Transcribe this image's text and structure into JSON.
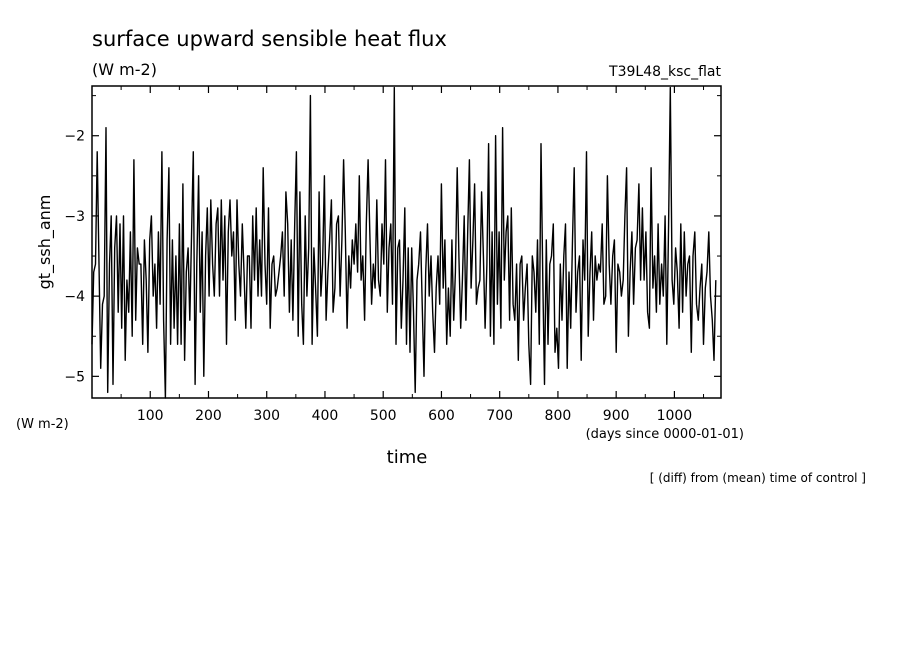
{
  "chart_data": {
    "type": "line",
    "title": "surface upward sensible heat flux",
    "units": "(W m-2)",
    "experiment": "T39L48_ksc_flat",
    "ylabel": "gt_ssh_anm",
    "yunits": "(W m-2)",
    "xlabel": "time",
    "xunits": "(days since 0000-01-01)",
    "note": "[ (diff) from (mean) time of control ]",
    "xlim": [
      0,
      1080
    ],
    "ylim": [
      -5.27,
      -1.38
    ],
    "xticks": [
      100,
      200,
      300,
      400,
      500,
      600,
      700,
      800,
      900,
      1000
    ],
    "yticks": [
      -2,
      -3,
      -4,
      -5
    ],
    "series": [
      {
        "x_start": 0,
        "x_step": 3,
        "values": [
          -4.6,
          -3.7,
          -3.6,
          -2.2,
          -3.6,
          -4.9,
          -4.1,
          -4.0,
          -1.9,
          -5.2,
          -3.6,
          -3.0,
          -5.1,
          -3.4,
          -3.0,
          -4.2,
          -3.1,
          -4.4,
          -3.0,
          -4.8,
          -3.8,
          -4.2,
          -3.2,
          -4.5,
          -2.3,
          -4.3,
          -3.4,
          -3.6,
          -3.6,
          -4.6,
          -3.3,
          -3.8,
          -4.7,
          -3.3,
          -3.0,
          -4.0,
          -3.6,
          -4.4,
          -3.2,
          -4.1,
          -2.2,
          -4.3,
          -5.3,
          -3.3,
          -2.4,
          -4.6,
          -3.3,
          -4.4,
          -3.5,
          -4.6,
          -3.1,
          -4.6,
          -2.6,
          -4.8,
          -3.7,
          -3.4,
          -4.3,
          -3.2,
          -2.2,
          -5.1,
          -3.6,
          -2.5,
          -4.2,
          -3.2,
          -5.0,
          -3.5,
          -2.9,
          -4.0,
          -2.8,
          -3.6,
          -4.0,
          -3.1,
          -2.9,
          -4.0,
          -2.8,
          -3.8,
          -3.0,
          -4.6,
          -3.2,
          -2.8,
          -3.5,
          -3.2,
          -4.3,
          -2.8,
          -3.6,
          -4.0,
          -3.1,
          -3.7,
          -4.4,
          -3.5,
          -3.5,
          -4.4,
          -3.0,
          -3.8,
          -2.9,
          -4.0,
          -3.3,
          -4.0,
          -2.4,
          -3.6,
          -4.1,
          -2.9,
          -4.4,
          -3.6,
          -3.5,
          -4.0,
          -3.9,
          -3.7,
          -3.5,
          -3.2,
          -4.0,
          -2.7,
          -3.1,
          -4.2,
          -3.3,
          -4.3,
          -3.1,
          -2.2,
          -4.5,
          -2.7,
          -4.1,
          -4.6,
          -3.0,
          -4.0,
          -3.4,
          -1.5,
          -4.6,
          -3.4,
          -3.9,
          -4.5,
          -2.7,
          -4.0,
          -3.6,
          -2.5,
          -4.3,
          -3.7,
          -3.3,
          -2.8,
          -4.2,
          -3.9,
          -3.1,
          -3.0,
          -4.0,
          -3.3,
          -2.3,
          -3.2,
          -4.4,
          -3.5,
          -3.9,
          -3.3,
          -3.6,
          -3.1,
          -3.7,
          -2.5,
          -3.8,
          -3.5,
          -4.3,
          -3.1,
          -2.3,
          -3.2,
          -4.1,
          -3.6,
          -3.9,
          -2.8,
          -3.8,
          -4.0,
          -3.1,
          -3.6,
          -2.3,
          -4.2,
          -3.4,
          -3.1,
          -4.1,
          -1.4,
          -4.6,
          -3.4,
          -3.3,
          -4.4,
          -3.8,
          -2.9,
          -4.6,
          -3.4,
          -4.7,
          -3.4,
          -4.2,
          -5.2,
          -3.8,
          -3.6,
          -3.2,
          -4.1,
          -5.0,
          -3.7,
          -3.1,
          -4.0,
          -3.5,
          -4.2,
          -4.7,
          -3.9,
          -3.5,
          -4.1,
          -2.6,
          -3.9,
          -3.3,
          -4.6,
          -3.9,
          -4.5,
          -3.3,
          -4.3,
          -3.7,
          -2.4,
          -3.5,
          -4.4,
          -3.8,
          -3.0,
          -4.3,
          -3.2,
          -2.3,
          -3.9,
          -3.3,
          -2.6,
          -4.1,
          -3.9,
          -3.8,
          -2.7,
          -3.5,
          -4.4,
          -3.6,
          -2.1,
          -4.5,
          -3.2,
          -4.6,
          -2.0,
          -4.1,
          -3.2,
          -4.4,
          -1.9,
          -3.8,
          -3.2,
          -3.0,
          -4.3,
          -2.9,
          -4.1,
          -4.3,
          -3.6,
          -4.8,
          -3.6,
          -3.5,
          -4.3,
          -3.9,
          -3.6,
          -4.6,
          -5.1,
          -3.5,
          -3.7,
          -4.2,
          -3.3,
          -4.6,
          -2.1,
          -3.8,
          -5.1,
          -3.3,
          -4.6,
          -3.6,
          -3.5,
          -3.1,
          -4.7,
          -4.4,
          -4.9,
          -3.6,
          -4.3,
          -3.5,
          -3.1,
          -4.9,
          -3.7,
          -4.4,
          -3.3,
          -2.4,
          -4.2,
          -3.7,
          -3.5,
          -4.8,
          -3.3,
          -3.8,
          -2.2,
          -4.5,
          -3.7,
          -3.2,
          -4.3,
          -3.5,
          -3.8,
          -3.6,
          -3.7,
          -3.1,
          -4.1,
          -4.0,
          -2.5,
          -3.6,
          -4.1,
          -3.5,
          -3.3,
          -4.7,
          -3.6,
          -3.7,
          -4.0,
          -3.8,
          -3.0,
          -2.4,
          -4.5,
          -3.7,
          -3.2,
          -4.1,
          -3.4,
          -3.3,
          -2.6,
          -3.8,
          -2.9,
          -3.8,
          -3.2,
          -4.2,
          -4.4,
          -2.4,
          -3.9,
          -3.5,
          -4.2,
          -3.1,
          -4.1,
          -3.6,
          -4.0,
          -3.0,
          -4.6,
          -3.1,
          -1.4,
          -3.8,
          -4.1,
          -3.4,
          -3.7,
          -4.4,
          -3.1,
          -4.2,
          -3.2,
          -4.0,
          -3.6,
          -3.5,
          -4.7,
          -3.5,
          -3.2,
          -4.1,
          -4.3,
          -3.9,
          -3.6,
          -4.6,
          -3.9,
          -3.7,
          -3.2,
          -4.0,
          -4.3,
          -4.8,
          -3.8
        ]
      }
    ]
  }
}
